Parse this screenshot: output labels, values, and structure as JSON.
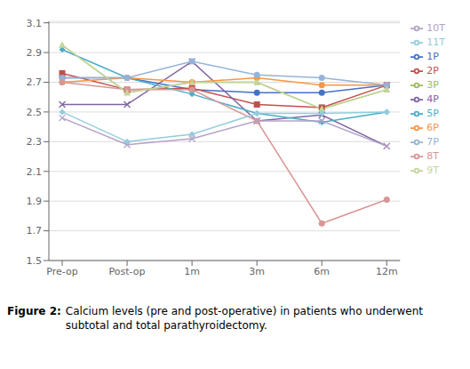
{
  "chart_data": {
    "type": "line",
    "categories": [
      "Pre-op",
      "Post-op",
      "1m",
      "3m",
      "6m",
      "12m"
    ],
    "series": [
      {
        "name": "1P",
        "color": "#4472C4",
        "marker": "circle",
        "line_style": "solid",
        "values": [
          2.73,
          2.73,
          2.65,
          2.63,
          2.63,
          2.68
        ]
      },
      {
        "name": "2P",
        "color": "#C0504D",
        "marker": "square",
        "line_style": "solid",
        "values": [
          2.76,
          2.65,
          2.66,
          2.55,
          2.53,
          2.68
        ]
      },
      {
        "name": "3P",
        "color": "#9BBB59",
        "marker": "triangle",
        "line_style": "solid",
        "values": [
          2.95,
          2.63,
          2.7,
          2.7,
          2.52,
          2.65
        ]
      },
      {
        "name": "4P",
        "color": "#8064A2",
        "marker": "x",
        "line_style": "solid",
        "values": [
          2.55,
          2.55,
          2.84,
          2.44,
          2.48,
          2.27
        ]
      },
      {
        "name": "5P",
        "color": "#4BACC6",
        "marker": "diamond",
        "line_style": "solid",
        "values": [
          2.92,
          2.73,
          2.62,
          2.49,
          2.43,
          2.5
        ]
      },
      {
        "name": "6P",
        "color": "#F79646",
        "marker": "circle",
        "line_style": "solid",
        "values": [
          2.7,
          2.73,
          2.7,
          2.73,
          2.68,
          2.68
        ]
      },
      {
        "name": "7P",
        "color": "#95B3D7",
        "marker": "circle",
        "line_style": "solid",
        "values": [
          2.73,
          2.73,
          2.84,
          2.75,
          2.73,
          2.68
        ]
      },
      {
        "name": "8T",
        "color": "#D99694",
        "marker": "circle",
        "line_style": "solid",
        "values": [
          2.7,
          2.65,
          2.65,
          2.44,
          1.75,
          1.91
        ]
      },
      {
        "name": "9T",
        "color": "#C3D69B",
        "marker": "triangle",
        "line_style": "solid",
        "values": [
          2.95,
          2.63,
          2.7,
          2.7,
          2.52,
          2.65
        ]
      },
      {
        "name": "10T",
        "color": "#B2A2C7",
        "marker": "x",
        "line_style": "solid",
        "values": [
          2.46,
          2.28,
          2.32,
          2.44,
          2.44,
          2.27
        ]
      },
      {
        "name": "11T",
        "color": "#92CDDC",
        "marker": "diamond",
        "line_style": "solid",
        "values": [
          2.5,
          2.3,
          2.35,
          2.49,
          2.49,
          2.5
        ]
      }
    ],
    "ylim": [
      1.5,
      3.11
    ],
    "yticks": [
      1.5,
      1.7,
      1.9,
      2.1,
      2.3,
      2.5,
      2.7,
      2.9,
      3.1
    ],
    "grid": true,
    "legend": "right",
    "annotations": [
      "Figure 2:",
      "Calcium levels (pre and post-operative) in patients who underwent\nsubtotal and total parathyroidectomy."
    ]
  }
}
